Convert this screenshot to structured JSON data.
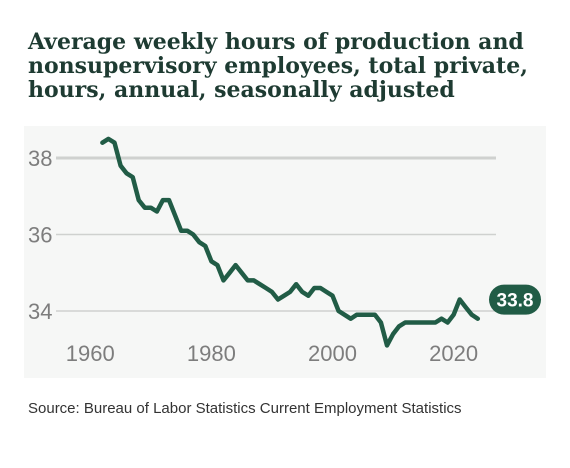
{
  "title": "Average weekly hours of production and nonsupervisory employees, total private, hours, annual, seasonally adjusted",
  "source": "Source: Bureau of Labor Statistics Current Employment Statistics",
  "colors": {
    "line": "#215c46",
    "grid": "#cfd1cf",
    "tick": "#7d7d7d",
    "background": "#f6f7f6",
    "title": "#1e3b32"
  },
  "chart_data": {
    "type": "line",
    "title": "Average weekly hours of production and nonsupervisory employees, total private, hours, annual, seasonally adjusted",
    "xlabel": "",
    "ylabel": "",
    "xlim": [
      1955,
      2027
    ],
    "ylim": [
      33.3,
      38.7
    ],
    "xticks": [
      1960,
      1980,
      2000,
      2020
    ],
    "yticks": [
      34,
      36,
      38
    ],
    "grid": "horizontal",
    "legend": "none",
    "end_label": "33.8",
    "series": [
      {
        "x": [
          1962,
          1963,
          1964,
          1965,
          1966,
          1967,
          1968,
          1969,
          1970,
          1971,
          1972,
          1973,
          1974,
          1975,
          1976,
          1977,
          1978,
          1979,
          1980,
          1981,
          1982,
          1983,
          1984,
          1985,
          1986,
          1987,
          1988,
          1989,
          1990,
          1991,
          1992,
          1993,
          1994,
          1995,
          1996,
          1997,
          1998,
          1999,
          2000,
          2001,
          2002,
          2003,
          2004,
          2005,
          2006,
          2007,
          2008,
          2009,
          2010,
          2011,
          2012,
          2013,
          2014,
          2015,
          2016,
          2017,
          2018,
          2019,
          2020,
          2021,
          2022,
          2023,
          2024
        ],
        "y": [
          38.4,
          38.5,
          38.4,
          37.8,
          37.6,
          37.5,
          36.9,
          36.7,
          36.7,
          36.6,
          36.9,
          36.9,
          36.5,
          36.1,
          36.1,
          36.0,
          35.8,
          35.7,
          35.3,
          35.2,
          34.8,
          35.0,
          35.2,
          35.0,
          34.8,
          34.8,
          34.7,
          34.6,
          34.5,
          34.3,
          34.4,
          34.5,
          34.7,
          34.5,
          34.4,
          34.6,
          34.6,
          34.5,
          34.4,
          34.0,
          33.9,
          33.8,
          33.9,
          33.9,
          33.9,
          33.9,
          33.7,
          33.1,
          33.4,
          33.6,
          33.7,
          33.7,
          33.7,
          33.7,
          33.7,
          33.7,
          33.8,
          33.7,
          33.9,
          34.3,
          34.1,
          33.9,
          33.8
        ]
      }
    ]
  }
}
